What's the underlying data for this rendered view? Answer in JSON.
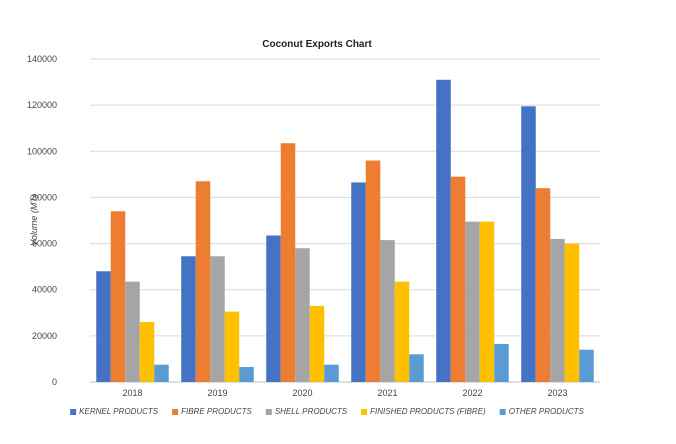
{
  "chart_data": {
    "type": "bar",
    "title": "Coconut Exports Chart",
    "xlabel": "",
    "ylabel": "Volume (MT)",
    "ylim": [
      0,
      140000
    ],
    "yticks": [
      0,
      20000,
      40000,
      60000,
      80000,
      100000,
      120000,
      140000
    ],
    "grid": true,
    "legend_position": "bottom",
    "categories": [
      "2018",
      "2019",
      "2020",
      "2021",
      "2022",
      "2023"
    ],
    "series": [
      {
        "name": "KERNEL PRODUCTS",
        "color": "#4472C4",
        "values": [
          48000,
          54500,
          63500,
          86500,
          131000,
          119500
        ]
      },
      {
        "name": "FIBRE PRODUCTS",
        "color": "#ED7D31",
        "values": [
          74000,
          87000,
          103500,
          96000,
          89000,
          84000
        ]
      },
      {
        "name": "SHELL PRODUCTS",
        "color": "#A5A5A5",
        "values": [
          43500,
          54500,
          58000,
          61500,
          69500,
          62000
        ]
      },
      {
        "name": "FINISHED PRODUCTS (FIBRE)",
        "color": "#FFC000",
        "values": [
          26000,
          30500,
          33000,
          43500,
          69500,
          60000
        ]
      },
      {
        "name": "OTHER PRODUCTS",
        "color": "#5B9BD5",
        "values": [
          7500,
          6500,
          7500,
          12000,
          16500,
          14000
        ]
      }
    ]
  }
}
